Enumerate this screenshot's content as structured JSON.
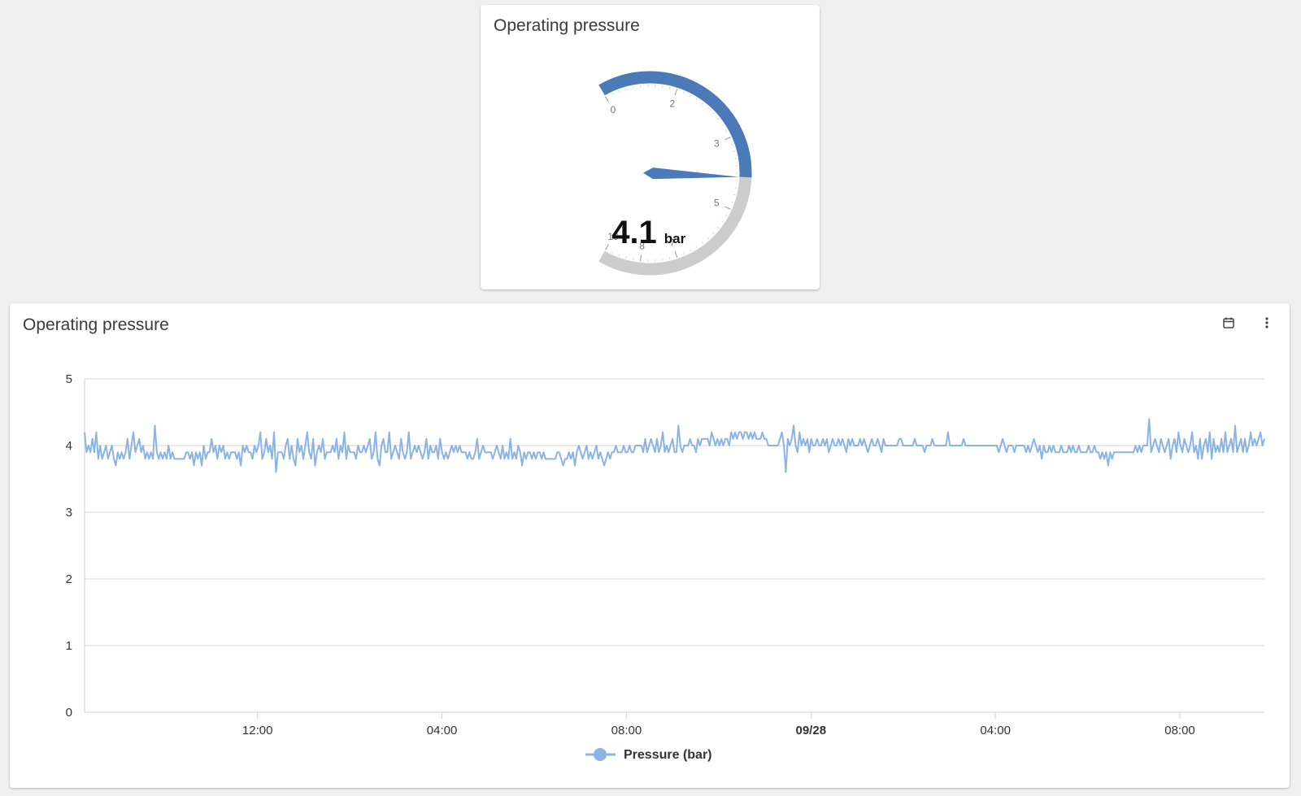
{
  "gauge_card": {
    "title": "Operating pressure",
    "gauge": {
      "value": 4.1,
      "value_text": "4.1",
      "unit": "bar",
      "min": 0,
      "max": 10,
      "tick_labels": [
        "0",
        "2",
        "3",
        "5",
        "7",
        "8",
        "10"
      ],
      "fill_color": "#4a7ab8",
      "track_color": "#cccccc"
    }
  },
  "chart_card": {
    "title": "Operating pressure",
    "icons": {
      "calendar": "calendar-icon",
      "menu": "more-vert-icon"
    }
  },
  "chart_data": {
    "type": "line",
    "title": "",
    "xlabel": "",
    "ylabel": "",
    "ylim": [
      0,
      5
    ],
    "yticks": [
      "0",
      "1",
      "2",
      "3",
      "4",
      "5"
    ],
    "xticks": [
      "12:00",
      "04:00",
      "08:00",
      "09/28",
      "04:00",
      "08:00"
    ],
    "grid": true,
    "legend": "bottom",
    "series": [
      {
        "name": "Pressure (bar)",
        "color": "#8ab4e4",
        "x_range": [
          "09/27 08:15",
          "09/28 09:50"
        ],
        "values": [
          4.2,
          3.9,
          4.0,
          3.9,
          4.1,
          3.9,
          4.2,
          3.8,
          4.0,
          3.8,
          3.9,
          4.0,
          3.8,
          3.9,
          4.0,
          3.8,
          3.7,
          3.9,
          3.8,
          3.9,
          3.8,
          3.9,
          4.1,
          3.8,
          4.0,
          4.2,
          3.9,
          4.0,
          4.1,
          3.9,
          4.0,
          3.8,
          3.9,
          3.8,
          3.9,
          3.8,
          4.3,
          3.9,
          3.8,
          3.9,
          3.8,
          3.9,
          3.8,
          4.0,
          3.8,
          3.9,
          3.8,
          3.8,
          3.8,
          3.8,
          3.8,
          3.8,
          3.9,
          3.9,
          3.8,
          3.9,
          3.7,
          3.9,
          3.8,
          3.9,
          3.7,
          4.0,
          3.8,
          3.9,
          3.9,
          4.1,
          3.9,
          4.0,
          3.8,
          4.0,
          3.9,
          4.0,
          3.8,
          3.9,
          3.8,
          3.9,
          3.9,
          3.9,
          3.8,
          3.9,
          3.7,
          4.0,
          3.9,
          4.0,
          3.9,
          3.9,
          3.8,
          4.0,
          3.9,
          4.0,
          4.2,
          3.8,
          3.9,
          4.1,
          3.9,
          4.0,
          3.8,
          4.2,
          3.6,
          3.9,
          3.9,
          3.9,
          3.8,
          4.0,
          4.1,
          3.8,
          4.0,
          3.8,
          3.7,
          4.1,
          3.9,
          4.0,
          3.8,
          4.0,
          4.2,
          3.9,
          3.8,
          4.1,
          3.7,
          3.9,
          4.0,
          3.9,
          4.1,
          3.8,
          3.9,
          3.9,
          3.9,
          4.0,
          3.9,
          4.1,
          3.8,
          4.0,
          3.9,
          4.2,
          3.8,
          4.0,
          3.9,
          3.9,
          3.9,
          3.8,
          4.0,
          3.9,
          3.9,
          4.0,
          3.9,
          4.0,
          4.1,
          3.8,
          3.9,
          4.2,
          3.8,
          3.7,
          4.0,
          4.1,
          3.9,
          3.9,
          4.2,
          3.8,
          3.9,
          4.0,
          3.9,
          3.8,
          4.1,
          3.9,
          3.8,
          3.9,
          4.2,
          3.8,
          3.9,
          4.0,
          3.9,
          4.0,
          3.9,
          3.8,
          3.9,
          4.1,
          3.8,
          4.0,
          3.9,
          3.9,
          4.0,
          3.8,
          4.1,
          3.9,
          3.8,
          3.9,
          3.8,
          3.9,
          4.0,
          3.9,
          4.0,
          3.9,
          4.0,
          3.9,
          3.9,
          3.9,
          3.8,
          3.9,
          3.8,
          3.8,
          3.9,
          4.1,
          3.8,
          3.9,
          4.0,
          3.9,
          3.9,
          3.9,
          3.9,
          3.8,
          3.9,
          4.0,
          3.9,
          3.8,
          4.0,
          3.8,
          3.9,
          3.8,
          4.1,
          3.8,
          3.9,
          3.8,
          4.0,
          3.9,
          3.7,
          3.9,
          3.8,
          3.9,
          3.9,
          3.8,
          3.9,
          3.8,
          3.9,
          3.9,
          3.8,
          3.9,
          3.8,
          3.8,
          3.8,
          3.8,
          3.8,
          3.8,
          3.9,
          3.9,
          3.8,
          3.7,
          3.8,
          3.8,
          3.9,
          3.8,
          3.9,
          3.7,
          3.9,
          4.0,
          3.9,
          3.8,
          3.9,
          4.0,
          3.8,
          3.9,
          3.8,
          3.9,
          4.0,
          3.8,
          3.9,
          3.8,
          3.7,
          3.8,
          3.9,
          3.8,
          3.9,
          3.9,
          4.0,
          3.9,
          3.9,
          3.9,
          4.0,
          3.9,
          3.9,
          4.0,
          3.9,
          3.9,
          4.0,
          4.0,
          4.0,
          4.0,
          3.9,
          4.1,
          3.9,
          4.0,
          4.1,
          4.0,
          3.9,
          4.1,
          3.9,
          4.0,
          4.2,
          3.9,
          4.0,
          3.9,
          4.0,
          4.1,
          3.9,
          3.9,
          4.3,
          4.0,
          3.9,
          4.0,
          4.0,
          4.0,
          4.1,
          4.0,
          4.0,
          3.9,
          4.1,
          4.0,
          4.1,
          4.1,
          4.1,
          4.1,
          4.0,
          4.2,
          4.1,
          4.0,
          4.1,
          4.0,
          4.1,
          4.0,
          4.1,
          4.1,
          4.0,
          4.2,
          4.1,
          4.2,
          4.1,
          4.2,
          4.2,
          4.1,
          4.2,
          4.2,
          4.1,
          4.2,
          4.1,
          4.2,
          4.1,
          4.1,
          4.1,
          4.2,
          4.1,
          4.1,
          4.0,
          4.0,
          4.0,
          4.0,
          4.0,
          4.0,
          4.1,
          4.2,
          4.0,
          3.6,
          4.1,
          4.0,
          4.1,
          4.3,
          4.0,
          3.9,
          4.2,
          4.0,
          4.1,
          4.0,
          4.1,
          3.9,
          4.1,
          4.0,
          4.0,
          4.1,
          4.0,
          4.0,
          4.1,
          4.0,
          4.1,
          3.9,
          4.0,
          4.1,
          4.0,
          4.0,
          4.1,
          4.0,
          4.1,
          4.0,
          3.9,
          4.1,
          4.0,
          4.1,
          4.0,
          4.0,
          4.0,
          4.1,
          4.0,
          4.1,
          4.0,
          3.9,
          4.0,
          4.1,
          4.0,
          4.0,
          4.1,
          4.0,
          3.9,
          4.1,
          4.0,
          4.0,
          4.0,
          4.0,
          4.0,
          4.0,
          4.0,
          4.1,
          4.1,
          4.0,
          4.0,
          4.0,
          4.0,
          4.0,
          4.0,
          4.1,
          4.0,
          4.0,
          4.0,
          4.0,
          3.9,
          4.0,
          4.0,
          4.0,
          4.1,
          4.0,
          4.0,
          4.0,
          4.0,
          4.0,
          4.0,
          4.0,
          4.2,
          4.0,
          4.0,
          4.0,
          4.0,
          4.0,
          4.0,
          4.0,
          4.1,
          4.0,
          4.0,
          4.0,
          4.0,
          4.0,
          4.0,
          4.0,
          4.0,
          4.0,
          4.0,
          4.0,
          4.0,
          4.0,
          4.0,
          4.0,
          4.0,
          4.0,
          3.9,
          4.0,
          4.1,
          4.0,
          3.9,
          4.0,
          4.0,
          4.0,
          3.9,
          4.0,
          4.0,
          4.0,
          4.0,
          4.0,
          3.9,
          4.0,
          3.9,
          4.0,
          4.1,
          4.0,
          3.9,
          4.0,
          3.8,
          4.0,
          3.9,
          3.9,
          4.0,
          3.9,
          4.0,
          3.9,
          3.9,
          3.9,
          4.0,
          3.9,
          3.9,
          3.9,
          4.0,
          3.9,
          4.0,
          3.9,
          3.9,
          4.0,
          3.9,
          3.9,
          3.9,
          3.9,
          4.0,
          3.9,
          3.9,
          4.0,
          3.9,
          3.9,
          3.8,
          3.9,
          3.8,
          3.9,
          3.7,
          3.9,
          3.8,
          3.9,
          3.9,
          3.9,
          3.9,
          3.9,
          3.9,
          3.9,
          3.9,
          3.9,
          3.9,
          3.9,
          4.0,
          3.9,
          4.0,
          3.9,
          4.0,
          4.0,
          4.0,
          4.4,
          3.9,
          4.0,
          4.1,
          4.0,
          3.9,
          4.1,
          4.0,
          3.9,
          4.0,
          4.1,
          3.8,
          4.0,
          4.1,
          3.9,
          4.2,
          4.0,
          3.9,
          4.1,
          4.0,
          3.9,
          4.0,
          4.2,
          3.9,
          4.0,
          3.8,
          4.1,
          3.8,
          4.0,
          4.1,
          3.9,
          4.2,
          3.8,
          4.1,
          3.9,
          4.0,
          3.9,
          4.1,
          3.9,
          4.2,
          3.9,
          4.0,
          4.1,
          3.9,
          4.3,
          3.9,
          4.0,
          4.1,
          3.9,
          4.1,
          3.9,
          4.0,
          4.2,
          4.0,
          4.1,
          4.0,
          4.1,
          4.2,
          4.0,
          4.1
        ]
      }
    ]
  }
}
